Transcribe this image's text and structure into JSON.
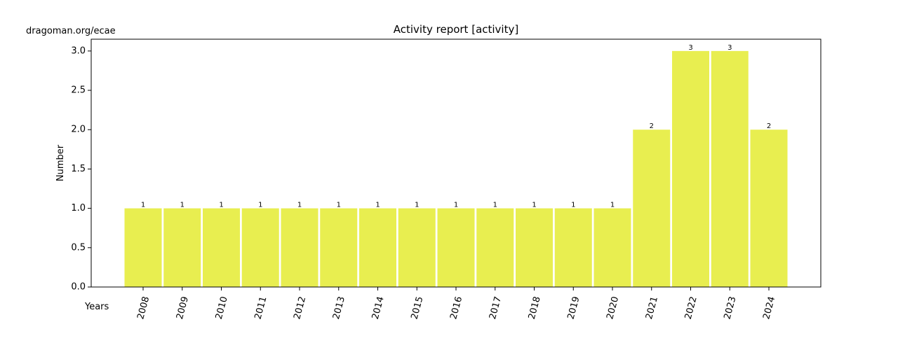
{
  "source": "dragoman.org/ecae",
  "chart_data": {
    "type": "bar",
    "title": "Activity report [activity]",
    "xlabel": "Years",
    "ylabel": "Number",
    "categories": [
      "2008",
      "2009",
      "2010",
      "2011",
      "2012",
      "2013",
      "2014",
      "2015",
      "2016",
      "2017",
      "2018",
      "2019",
      "2020",
      "2021",
      "2022",
      "2023",
      "2024"
    ],
    "values": [
      1,
      1,
      1,
      1,
      1,
      1,
      1,
      1,
      1,
      1,
      1,
      1,
      1,
      2,
      3,
      3,
      2
    ],
    "ylim": [
      0,
      3.15
    ],
    "yticks": [
      "0.0",
      "0.5",
      "1.0",
      "1.5",
      "2.0",
      "2.5",
      "3.0"
    ],
    "bar_color": "#e8ee50",
    "grid": false,
    "show_value_labels": true
  }
}
